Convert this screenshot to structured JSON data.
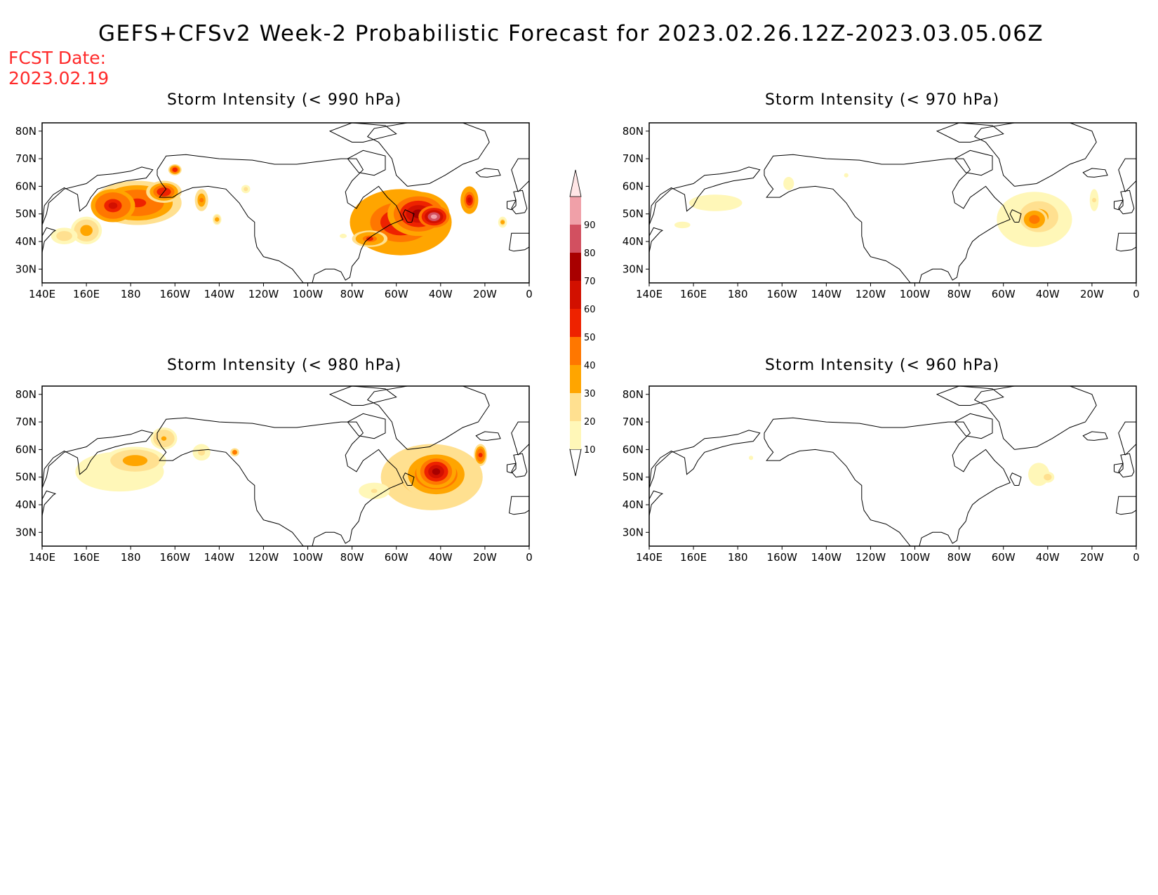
{
  "title": "GEFS+CFSv2 Week-2 Probabilistic Forecast for 2023.02.26.12Z-2023.03.05.06Z",
  "fcst_date": {
    "label": "FCST Date:",
    "value": "2023.02.19"
  },
  "lon_labels": [
    "140E",
    "160E",
    "180",
    "160W",
    "140W",
    "120W",
    "100W",
    "80W",
    "60W",
    "40W",
    "20W",
    "0"
  ],
  "lat_labels": [
    "80N",
    "70N",
    "60N",
    "50N",
    "40N",
    "30N"
  ],
  "lon_range": [
    140,
    360
  ],
  "lat_range": [
    25,
    83
  ],
  "panels": [
    {
      "id": "p990",
      "title": "Storm Intensity (< 990 hPa)",
      "blobs": [
        {
          "lon": 183,
          "lat": 54,
          "rx": 20,
          "ry": 8,
          "v": 55
        },
        {
          "lon": 172,
          "lat": 53,
          "rx": 10,
          "ry": 6,
          "v": 66
        },
        {
          "lon": 195,
          "lat": 58,
          "rx": 8,
          "ry": 4,
          "v": 58
        },
        {
          "lon": 160,
          "lat": 44,
          "rx": 7,
          "ry": 5,
          "v": 38
        },
        {
          "lon": 150,
          "lat": 42,
          "rx": 6,
          "ry": 3,
          "v": 28
        },
        {
          "lon": 200,
          "lat": 66,
          "rx": 3,
          "ry": 2,
          "v": 58
        },
        {
          "lon": 212,
          "lat": 55,
          "rx": 3,
          "ry": 4,
          "v": 42
        },
        {
          "lon": 219,
          "lat": 48,
          "rx": 2,
          "ry": 2,
          "v": 35
        },
        {
          "lon": 232,
          "lat": 59,
          "rx": 2,
          "ry": 1.5,
          "v": 22
        },
        {
          "lon": 276,
          "lat": 42,
          "rx": 2,
          "ry": 1,
          "v": 18
        },
        {
          "lon": 302,
          "lat": 47,
          "rx": 23,
          "ry": 12,
          "v": 60
        },
        {
          "lon": 310,
          "lat": 50,
          "rx": 14,
          "ry": 8,
          "v": 78
        },
        {
          "lon": 317,
          "lat": 49,
          "rx": 7,
          "ry": 4,
          "v": 92
        },
        {
          "lon": 288,
          "lat": 41,
          "rx": 8,
          "ry": 3,
          "v": 52
        },
        {
          "lon": 333,
          "lat": 55,
          "rx": 4,
          "ry": 5,
          "v": 62
        },
        {
          "lon": 348,
          "lat": 47,
          "rx": 2,
          "ry": 2,
          "v": 30
        }
      ]
    },
    {
      "id": "p970",
      "title": "Storm Intensity (< 970 hPa)",
      "blobs": [
        {
          "lon": 170,
          "lat": 54,
          "rx": 20,
          "ry": 5,
          "v": 15
        },
        {
          "lon": 155,
          "lat": 46,
          "rx": 6,
          "ry": 2,
          "v": 14
        },
        {
          "lon": 203,
          "lat": 61,
          "rx": 3,
          "ry": 3,
          "v": 18
        },
        {
          "lon": 229,
          "lat": 64,
          "rx": 1,
          "ry": 1,
          "v": 15
        },
        {
          "lon": 314,
          "lat": 48,
          "rx": 17,
          "ry": 10,
          "v": 22
        },
        {
          "lon": 316,
          "lat": 49,
          "rx": 11,
          "ry": 7,
          "v": 38
        },
        {
          "lon": 314,
          "lat": 48,
          "rx": 6,
          "ry": 4,
          "v": 48
        },
        {
          "lon": 341,
          "lat": 55,
          "rx": 2,
          "ry": 4,
          "v": 22
        }
      ]
    },
    {
      "id": "p980",
      "title": "Storm Intensity (< 980 hPa)",
      "blobs": [
        {
          "lon": 175,
          "lat": 52,
          "rx": 25,
          "ry": 9,
          "v": 18
        },
        {
          "lon": 182,
          "lat": 56,
          "rx": 14,
          "ry": 5,
          "v": 35
        },
        {
          "lon": 195,
          "lat": 64,
          "rx": 6,
          "ry": 4,
          "v": 32
        },
        {
          "lon": 212,
          "lat": 59,
          "rx": 4,
          "ry": 3,
          "v": 24
        },
        {
          "lon": 227,
          "lat": 59,
          "rx": 2,
          "ry": 1.5,
          "v": 45
        },
        {
          "lon": 316,
          "lat": 50,
          "rx": 23,
          "ry": 12,
          "v": 42
        },
        {
          "lon": 318,
          "lat": 51,
          "rx": 16,
          "ry": 9,
          "v": 58
        },
        {
          "lon": 318,
          "lat": 52,
          "rx": 9,
          "ry": 6,
          "v": 78
        },
        {
          "lon": 290,
          "lat": 45,
          "rx": 7,
          "ry": 3,
          "v": 20
        },
        {
          "lon": 338,
          "lat": 58,
          "rx": 3,
          "ry": 4,
          "v": 55
        }
      ]
    },
    {
      "id": "p960",
      "title": "Storm Intensity (< 960 hPa)",
      "blobs": [
        {
          "lon": 316,
          "lat": 51,
          "rx": 8,
          "ry": 7,
          "v": 15
        },
        {
          "lon": 320,
          "lat": 50,
          "rx": 3,
          "ry": 2,
          "v": 28
        },
        {
          "lon": 186,
          "lat": 57,
          "rx": 1,
          "ry": 1,
          "v": 12
        }
      ]
    }
  ],
  "colorbar": {
    "levels": [
      10,
      20,
      30,
      40,
      50,
      60,
      70,
      80,
      90
    ],
    "labels": [
      "10",
      "20",
      "30",
      "40",
      "50",
      "60",
      "70",
      "80",
      "90"
    ],
    "colors": [
      "#fff7b8",
      "#ffe090",
      "#ffa500",
      "#ff7700",
      "#ee2200",
      "#d21000",
      "#a80000",
      "#d25060",
      "#f0a0a8",
      "#ffe6e6"
    ]
  }
}
